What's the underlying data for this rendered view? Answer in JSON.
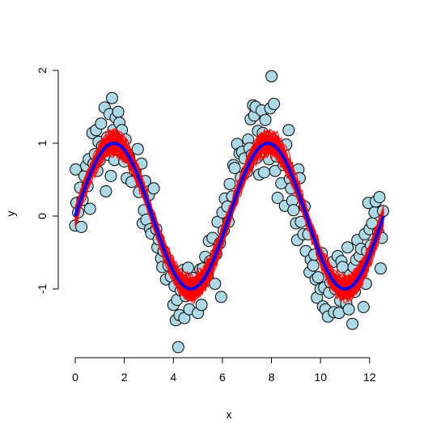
{
  "chart_data": {
    "type": "scatter",
    "title": "",
    "xlabel": "x",
    "ylabel": "y",
    "xlim": [
      0,
      12.566
    ],
    "ylim": [
      -1.85,
      2.0
    ],
    "x_ticks": [
      0,
      2,
      4,
      6,
      8,
      10,
      12
    ],
    "x_tick_labels": [
      "0",
      "2",
      "4",
      "6",
      "8",
      "10",
      "12"
    ],
    "y_ticks": [
      -1,
      0,
      1,
      2
    ],
    "y_tick_labels": [
      "-1",
      "0",
      "1",
      "2"
    ],
    "grid": false,
    "colors": {
      "points_fill": "#add8e6",
      "points_stroke": "#000000",
      "band": "#ff0000",
      "mean_line": "#0000ff"
    },
    "series": [
      {
        "kind": "points",
        "points": [
          [
            0.0,
            -0.13
          ],
          [
            0.02,
            0.64
          ],
          [
            0.05,
            0.18
          ],
          [
            0.12,
            0.05
          ],
          [
            0.2,
            0.39
          ],
          [
            0.25,
            -0.15
          ],
          [
            0.3,
            0.22
          ],
          [
            0.38,
            0.55
          ],
          [
            0.45,
            0.69
          ],
          [
            0.5,
            0.41
          ],
          [
            0.55,
            0.78
          ],
          [
            0.6,
            0.1
          ],
          [
            0.7,
            1.14
          ],
          [
            0.75,
            0.72
          ],
          [
            0.8,
            0.85
          ],
          [
            0.85,
            1.18
          ],
          [
            0.9,
            0.62
          ],
          [
            0.95,
            1.02
          ],
          [
            1.0,
            0.77
          ],
          [
            1.05,
            1.27
          ],
          [
            1.1,
            0.96
          ],
          [
            1.2,
            1.49
          ],
          [
            1.25,
            0.34
          ],
          [
            1.3,
            1.08
          ],
          [
            1.35,
            0.84
          ],
          [
            1.4,
            1.4
          ],
          [
            1.45,
            0.55
          ],
          [
            1.5,
            1.62
          ],
          [
            1.55,
            1.18
          ],
          [
            1.6,
            0.77
          ],
          [
            1.65,
            1.35
          ],
          [
            1.7,
            0.97
          ],
          [
            1.75,
            1.43
          ],
          [
            1.8,
            1.28
          ],
          [
            1.85,
            0.91
          ],
          [
            1.9,
            1.18
          ],
          [
            2.0,
            0.75
          ],
          [
            2.05,
            1.05
          ],
          [
            2.1,
            0.52
          ],
          [
            2.15,
            0.85
          ],
          [
            2.2,
            0.8
          ],
          [
            2.3,
            0.47
          ],
          [
            2.4,
            0.67
          ],
          [
            2.45,
            0.62
          ],
          [
            2.55,
            0.92
          ],
          [
            2.6,
            0.33
          ],
          [
            2.7,
            0.72
          ],
          [
            2.75,
            -0.1
          ],
          [
            2.8,
            0.08
          ],
          [
            2.85,
            0.48
          ],
          [
            2.9,
            -0.05
          ],
          [
            3.0,
            0.29
          ],
          [
            3.05,
            -0.18
          ],
          [
            3.1,
            -0.24
          ],
          [
            3.2,
            0.38
          ],
          [
            3.3,
            -0.18
          ],
          [
            3.35,
            -0.43
          ],
          [
            3.4,
            -0.32
          ],
          [
            3.5,
            -0.58
          ],
          [
            3.55,
            -0.7
          ],
          [
            3.6,
            -0.48
          ],
          [
            3.7,
            -0.87
          ],
          [
            3.8,
            -0.68
          ],
          [
            3.9,
            -0.83
          ],
          [
            4.0,
            -1.22
          ],
          [
            4.05,
            -0.96
          ],
          [
            4.1,
            -1.43
          ],
          [
            4.15,
            -1.15
          ],
          [
            4.2,
            -1.8
          ],
          [
            4.25,
            -1.36
          ],
          [
            4.3,
            -1.02
          ],
          [
            4.4,
            -0.74
          ],
          [
            4.45,
            -1.4
          ],
          [
            4.5,
            -1.1
          ],
          [
            4.6,
            -0.71
          ],
          [
            4.65,
            -1.28
          ],
          [
            4.7,
            -0.92
          ],
          [
            4.8,
            -0.85
          ],
          [
            4.9,
            -1.02
          ],
          [
            5.0,
            -1.33
          ],
          [
            5.05,
            -0.95
          ],
          [
            5.1,
            -0.73
          ],
          [
            5.15,
            -1.22
          ],
          [
            5.2,
            -0.72
          ],
          [
            5.3,
            -0.56
          ],
          [
            5.4,
            -0.83
          ],
          [
            5.45,
            -0.34
          ],
          [
            5.5,
            -0.62
          ],
          [
            5.6,
            -0.3
          ],
          [
            5.7,
            -0.93
          ],
          [
            5.75,
            -0.52
          ],
          [
            5.8,
            -0.08
          ],
          [
            5.9,
            -0.37
          ],
          [
            5.95,
            -1.11
          ],
          [
            6.0,
            0.05
          ],
          [
            6.05,
            -0.2
          ],
          [
            6.1,
            0.24
          ],
          [
            6.2,
            0.13
          ],
          [
            6.25,
            -0.08
          ],
          [
            6.3,
            0.44
          ],
          [
            6.4,
            0.27
          ],
          [
            6.45,
            0.7
          ],
          [
            6.5,
            0.66
          ],
          [
            6.6,
            0.99
          ],
          [
            6.7,
            0.86
          ],
          [
            6.75,
            0.53
          ],
          [
            6.8,
            0.88
          ],
          [
            6.9,
            0.79
          ],
          [
            7.0,
            0.61
          ],
          [
            7.05,
            1.05
          ],
          [
            7.1,
            0.93
          ],
          [
            7.15,
            1.33
          ],
          [
            7.2,
            0.84
          ],
          [
            7.25,
            1.52
          ],
          [
            7.3,
            1.38
          ],
          [
            7.35,
            1.5
          ],
          [
            7.4,
            0.8
          ],
          [
            7.45,
            1.17
          ],
          [
            7.5,
            0.57
          ],
          [
            7.6,
            1.45
          ],
          [
            7.65,
            1.14
          ],
          [
            7.7,
            0.6
          ],
          [
            7.75,
            1.32
          ],
          [
            7.8,
            1.08
          ],
          [
            7.9,
            0.78
          ],
          [
            7.95,
            1.48
          ],
          [
            8.0,
            1.92
          ],
          [
            8.05,
            1.05
          ],
          [
            8.1,
            1.54
          ],
          [
            8.15,
            0.62
          ],
          [
            8.2,
            0.82
          ],
          [
            8.25,
            0.25
          ],
          [
            8.3,
            0.96
          ],
          [
            8.4,
            0.45
          ],
          [
            8.5,
            0.7
          ],
          [
            8.55,
            0.14
          ],
          [
            8.6,
            0.98
          ],
          [
            8.7,
            1.18
          ],
          [
            8.75,
            0.51
          ],
          [
            8.8,
            0.38
          ],
          [
            8.85,
            0.21
          ],
          [
            8.9,
            0.08
          ],
          [
            9.0,
            -0.1
          ],
          [
            9.05,
            -0.33
          ],
          [
            9.1,
            0.64
          ],
          [
            9.15,
            0.52
          ],
          [
            9.2,
            -0.08
          ],
          [
            9.3,
            -0.25
          ],
          [
            9.35,
            0.13
          ],
          [
            9.4,
            -0.48
          ],
          [
            9.5,
            -0.25
          ],
          [
            9.55,
            -0.77
          ],
          [
            9.6,
            -0.6
          ],
          [
            9.7,
            -0.68
          ],
          [
            9.75,
            -0.53
          ],
          [
            9.8,
            -0.87
          ],
          [
            9.85,
            -1.12
          ],
          [
            9.9,
            -0.84
          ],
          [
            10.0,
            -1.0
          ],
          [
            10.05,
            -0.51
          ],
          [
            10.1,
            -1.24
          ],
          [
            10.15,
            -0.98
          ],
          [
            10.2,
            -1.28
          ],
          [
            10.3,
            -1.38
          ],
          [
            10.35,
            -1.05
          ],
          [
            10.4,
            -0.91
          ],
          [
            10.5,
            -0.63
          ],
          [
            10.55,
            -1.32
          ],
          [
            10.6,
            -1.0
          ],
          [
            10.7,
            -0.55
          ],
          [
            10.75,
            -1.33
          ],
          [
            10.8,
            -1.16
          ],
          [
            10.85,
            -0.62
          ],
          [
            10.9,
            -0.7
          ],
          [
            11.0,
            -0.93
          ],
          [
            11.05,
            -1.2
          ],
          [
            11.1,
            -0.43
          ],
          [
            11.15,
            -1.28
          ],
          [
            11.2,
            -0.81
          ],
          [
            11.3,
            -1.48
          ],
          [
            11.35,
            -0.7
          ],
          [
            11.4,
            -1.04
          ],
          [
            11.45,
            -0.6
          ],
          [
            11.5,
            -0.33
          ],
          [
            11.6,
            -0.55
          ],
          [
            11.65,
            -0.45
          ],
          [
            11.75,
            -1.25
          ],
          [
            11.8,
            -0.25
          ],
          [
            11.85,
            -0.93
          ],
          [
            11.9,
            -0.48
          ],
          [
            11.95,
            0.18
          ],
          [
            12.0,
            -0.18
          ],
          [
            12.05,
            -0.4
          ],
          [
            12.1,
            -0.1
          ],
          [
            12.2,
            0.05
          ],
          [
            12.25,
            0.2
          ],
          [
            12.35,
            -0.22
          ],
          [
            12.4,
            0.26
          ],
          [
            12.45,
            -0.72
          ],
          [
            12.5,
            -0.3
          ],
          [
            12.55,
            0.07
          ]
        ]
      },
      {
        "kind": "band",
        "description_curve": "sin",
        "half_width": 0.18,
        "x_range": [
          0,
          12.566
        ]
      },
      {
        "kind": "line",
        "description_curve": "sin",
        "x_range": [
          0,
          12.566
        ]
      }
    ]
  }
}
